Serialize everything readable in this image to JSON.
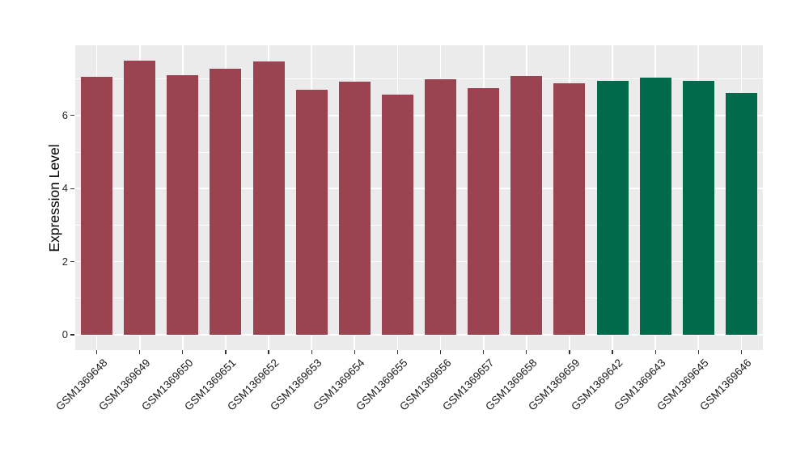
{
  "chart_data": {
    "type": "bar",
    "title": "",
    "xlabel": "",
    "ylabel": "Expression Level",
    "categories": [
      "GSM1369648",
      "GSM1369649",
      "GSM1369650",
      "GSM1369651",
      "GSM1369652",
      "GSM1369653",
      "GSM1369654",
      "GSM1369655",
      "GSM1369656",
      "GSM1369657",
      "GSM1369658",
      "GSM1369659",
      "GSM1369642",
      "GSM1369643",
      "GSM1369645",
      "GSM1369646"
    ],
    "values": [
      7.05,
      7.5,
      7.1,
      7.28,
      7.47,
      6.7,
      6.93,
      6.56,
      7.0,
      6.75,
      7.09,
      6.89,
      6.94,
      7.03,
      6.95,
      6.61
    ],
    "group_of_bar": [
      "group1",
      "group1",
      "group1",
      "group1",
      "group1",
      "group1",
      "group1",
      "group1",
      "group1",
      "group1",
      "group1",
      "group1",
      "group2",
      "group2",
      "group2",
      "group2"
    ],
    "group_colors": {
      "group1": "#9c4351",
      "group2": "#006a4a"
    },
    "ylim": [
      0,
      7.9
    ],
    "yticks": [
      0,
      2,
      4,
      6
    ],
    "yminor": [
      1,
      3,
      5,
      7
    ],
    "grid": true,
    "legend": "none",
    "panel_bg": "#ebebeb",
    "grid_color": "#ffffff",
    "tick_color": "#333333"
  }
}
